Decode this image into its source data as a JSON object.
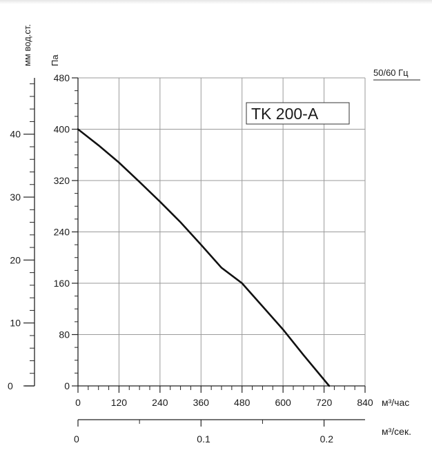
{
  "chart_data": {
    "type": "line",
    "title": "TK 200-A",
    "frequency_label": "50/60 Гц",
    "y_axis_pa": {
      "unit": "Па",
      "range": [
        0,
        480
      ],
      "ticks": [
        "0",
        "80",
        "160",
        "240",
        "320",
        "400",
        "480"
      ]
    },
    "y_axis_mm": {
      "unit": "мм вод.ст.",
      "ticks": [
        "0",
        "10",
        "20",
        "30",
        "40"
      ]
    },
    "x_axis_m3h": {
      "unit": "м³/час",
      "range": [
        0,
        840
      ],
      "ticks": [
        "0",
        "120",
        "240",
        "360",
        "480",
        "600",
        "720",
        "840"
      ]
    },
    "x_axis_m3s": {
      "unit": "м³/сек.",
      "ticks": [
        "0",
        "0.1",
        "0.2"
      ]
    },
    "grid": true,
    "series": [
      {
        "x": [
          0,
          60,
          120,
          180,
          240,
          300,
          360,
          420,
          480,
          540,
          600,
          660,
          735
        ],
        "y": [
          400,
          375,
          348,
          318,
          287,
          255,
          220,
          184,
          160,
          124,
          88,
          48,
          0
        ]
      }
    ],
    "colors": {
      "line": "#111111",
      "grid": "#9a9a9a",
      "axis": "#222222"
    }
  }
}
